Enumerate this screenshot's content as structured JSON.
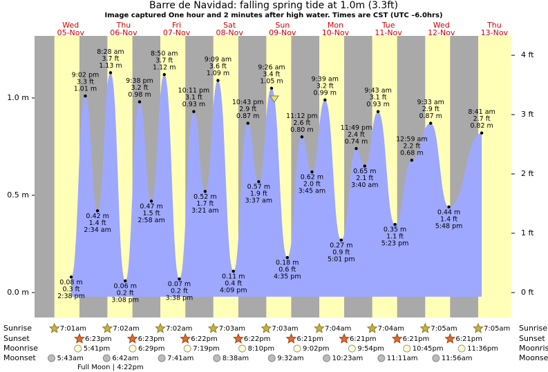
{
  "chart_data": {
    "type": "area",
    "title": "Barre de Navidad: falling  spring tide at 1.0m (3.3ft)",
    "subtitle": "Image captured One hour and 2 minutes after high water. Times are CST (UTC –6.0hrs)",
    "color": "#9ea8ff",
    "ylim": [
      -0.128,
      1.319
    ],
    "yticks": [
      {
        "value": 0,
        "label": "0.0 m"
      },
      {
        "value": 0.5,
        "label": "0.5 m"
      },
      {
        "value": 1,
        "label": "1.0 m"
      }
    ],
    "y2lim": [
      -0.42,
      4.327
    ],
    "y2ticks": [
      {
        "value": 0,
        "label": "0 ft"
      },
      {
        "value": 1,
        "label": "1 ft"
      },
      {
        "value": 2,
        "label": "2 ft"
      },
      {
        "value": 3,
        "label": "3 ft"
      },
      {
        "value": 4,
        "label": "4 ft"
      }
    ],
    "rows": {
      "sunrise": "Sunrise",
      "sunset": "Sunset",
      "moonrise": "Moonrise",
      "moonset": "Moonset"
    },
    "full_moon": "Full Moon | 4:22pm",
    "days": [
      {
        "weekday": "Wed",
        "date": "05-Nov",
        "sunrise": "7:01am",
        "sunset": "6:23pm",
        "moonrise": "5:41pm",
        "moonset": "5:43am",
        "tides": [
          {
            "time": "2:38 pm",
            "value": 0.08,
            "label": "0.08 m",
            "ft_label": "0.3 ft"
          },
          {
            "time": "9:02 pm",
            "value": 1.01,
            "label": "1.01 m",
            "ft_label": "3.3 ft"
          }
        ]
      },
      {
        "weekday": "Thu",
        "date": "06-Nov",
        "sunrise": "7:02am",
        "sunset": "6:23pm",
        "moonrise": "6:29pm",
        "moonset": "6:42am",
        "tides": [
          {
            "time": "2:34 am",
            "value": 0.42,
            "label": "0.42 m",
            "ft_label": "1.4 ft"
          },
          {
            "time": "8:28 am",
            "value": 1.13,
            "label": "1.13 m",
            "ft_label": "3.7 ft"
          },
          {
            "time": "3:08 pm",
            "value": 0.06,
            "label": "0.06 m",
            "ft_label": "0.2 ft"
          },
          {
            "time": "9:38 pm",
            "value": 0.98,
            "label": "0.98 m",
            "ft_label": "3.2 ft"
          }
        ]
      },
      {
        "weekday": "Fri",
        "date": "07-Nov",
        "sunrise": "7:02am",
        "sunset": "6:22pm",
        "moonrise": "7:19pm",
        "moonset": "7:41am",
        "tides": [
          {
            "time": "2:58 am",
            "value": 0.47,
            "label": "0.47 m",
            "ft_label": "1.5 ft"
          },
          {
            "time": "8:50 am",
            "value": 1.12,
            "label": "1.12 m",
            "ft_label": "3.7 ft"
          },
          {
            "time": "3:38 pm",
            "value": 0.07,
            "label": "0.07 m",
            "ft_label": "0.2 ft"
          },
          {
            "time": "10:11 pm",
            "value": 0.93,
            "label": "0.93 m",
            "ft_label": "3.1 ft"
          }
        ]
      },
      {
        "weekday": "Sat",
        "date": "08-Nov",
        "sunrise": "7:03am",
        "sunset": "6:22pm",
        "moonrise": "8:10pm",
        "moonset": "8:38am",
        "tides": [
          {
            "time": "3:21 am",
            "value": 0.52,
            "label": "0.52 m",
            "ft_label": "1.7 ft"
          },
          {
            "time": "9:09 am",
            "value": 1.09,
            "label": "1.09 m",
            "ft_label": "3.6 ft"
          },
          {
            "time": "4:09 pm",
            "value": 0.11,
            "label": "0.11 m",
            "ft_label": "0.4 ft"
          },
          {
            "time": "10:43 pm",
            "value": 0.87,
            "label": "0.87 m",
            "ft_label": "2.9 ft"
          }
        ]
      },
      {
        "weekday": "Sun",
        "date": "09-Nov",
        "sunrise": "7:03am",
        "sunset": "6:21pm",
        "moonrise": "9:02pm",
        "moonset": "9:32am",
        "tides": [
          {
            "time": "3:37 am",
            "value": 0.57,
            "label": "0.57 m",
            "ft_label": "1.9 ft"
          },
          {
            "time": "9:26 am",
            "value": 1.05,
            "label": "1.05 m",
            "ft_label": "3.4 ft"
          },
          {
            "time": "4:35 pm",
            "value": 0.18,
            "label": "0.18 m",
            "ft_label": "0.6 ft"
          },
          {
            "time": "11:12 pm",
            "value": 0.8,
            "label": "0.80 m",
            "ft_label": "2.6 ft"
          }
        ]
      },
      {
        "weekday": "Mon",
        "date": "10-Nov",
        "sunrise": "7:04am",
        "sunset": "6:21pm",
        "moonrise": "9:54pm",
        "moonset": "10:23am",
        "tides": [
          {
            "time": "3:45 am",
            "value": 0.62,
            "label": "0.62 m",
            "ft_label": "2.0 ft"
          },
          {
            "time": "9:39 am",
            "value": 0.99,
            "label": "0.99 m",
            "ft_label": "3.2 ft"
          },
          {
            "time": "5:01 pm",
            "value": 0.27,
            "label": "0.27 m",
            "ft_label": "0.9 ft"
          },
          {
            "time": "11:49 pm",
            "value": 0.74,
            "label": "0.74 m",
            "ft_label": "2.4 ft"
          }
        ]
      },
      {
        "weekday": "Tue",
        "date": "11-Nov",
        "sunrise": "7:04am",
        "sunset": "6:21pm",
        "moonrise": "10:45pm",
        "moonset": "11:11am",
        "tides": [
          {
            "time": "3:40 am",
            "value": 0.65,
            "label": "0.65 m",
            "ft_label": "2.1 ft"
          },
          {
            "time": "9:43 am",
            "value": 0.93,
            "label": "0.93 m",
            "ft_label": "3.1 ft"
          },
          {
            "time": "5:23 pm",
            "value": 0.35,
            "label": "0.35 m",
            "ft_label": "1.1 ft"
          }
        ]
      },
      {
        "weekday": "Wed",
        "date": "12-Nov",
        "sunrise": "7:05am",
        "sunset": "6:21pm",
        "moonrise": "11:36pm",
        "moonset": "11:56am",
        "tides": [
          {
            "time": "12:59 am",
            "value": 0.68,
            "label": "0.68 m",
            "ft_label": "2.2 ft"
          },
          {
            "time": "9:33 am",
            "value": 0.87,
            "label": "0.87 m",
            "ft_label": "2.9 ft"
          },
          {
            "time": "5:48 pm",
            "value": 0.44,
            "label": "0.44 m",
            "ft_label": "1.4 ft"
          }
        ]
      },
      {
        "weekday": "Thu",
        "date": "13-Nov",
        "sunrise": "7:05am",
        "tides": [
          {
            "time": "8:41 am",
            "value": 0.82,
            "label": "0.82 m",
            "ft_label": "2.7 ft"
          }
        ]
      }
    ]
  }
}
